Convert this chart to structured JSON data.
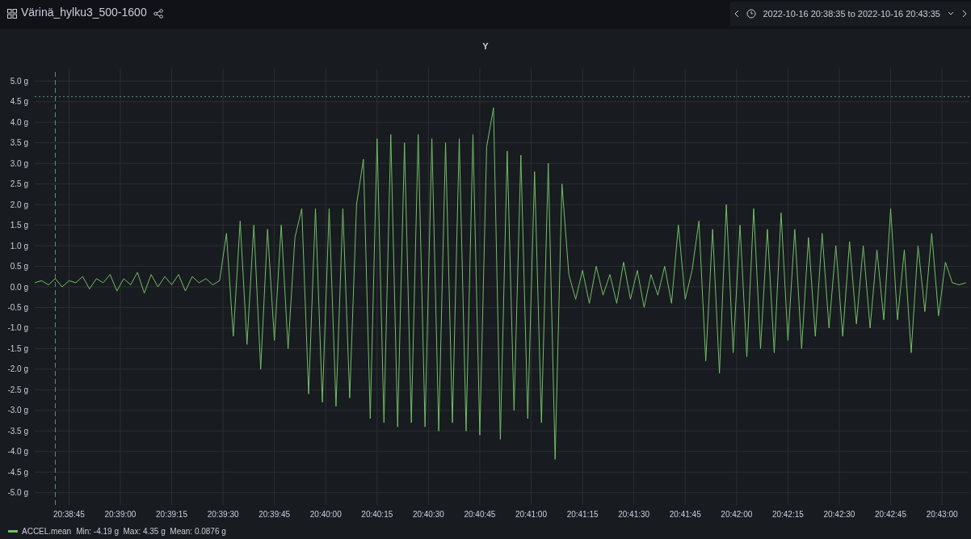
{
  "chart_data": {
    "type": "line",
    "title": "Värinä_hylku3_500-1600",
    "subtitle": "Y",
    "annotations": [
      "2022-10-16 20:38:35 to 2022-10-16 20:43:35",
      "Min: -4.19 g  Max: 4.35 g  Mean: 0.0876 g"
    ],
    "x": [
      "2022-10-16T20:38:35",
      "2022-10-16T20:38:37",
      "2022-10-16T20:38:39",
      "2022-10-16T20:38:41",
      "2022-10-16T20:38:43",
      "2022-10-16T20:38:45",
      "2022-10-16T20:38:47",
      "2022-10-16T20:38:49",
      "2022-10-16T20:38:51",
      "2022-10-16T20:38:53",
      "2022-10-16T20:38:55",
      "2022-10-16T20:38:57",
      "2022-10-16T20:38:59",
      "2022-10-16T20:39:01",
      "2022-10-16T20:39:03",
      "2022-10-16T20:39:05",
      "2022-10-16T20:39:07",
      "2022-10-16T20:39:09",
      "2022-10-16T20:39:11",
      "2022-10-16T20:39:13",
      "2022-10-16T20:39:15",
      "2022-10-16T20:39:17",
      "2022-10-16T20:39:19",
      "2022-10-16T20:39:21",
      "2022-10-16T20:39:23",
      "2022-10-16T20:39:25",
      "2022-10-16T20:39:27",
      "2022-10-16T20:39:29",
      "2022-10-16T20:39:31",
      "2022-10-16T20:39:33",
      "2022-10-16T20:39:35",
      "2022-10-16T20:39:37",
      "2022-10-16T20:39:39",
      "2022-10-16T20:39:41",
      "2022-10-16T20:39:43",
      "2022-10-16T20:39:45",
      "2022-10-16T20:39:47",
      "2022-10-16T20:39:49",
      "2022-10-16T20:39:51",
      "2022-10-16T20:39:53",
      "2022-10-16T20:39:55",
      "2022-10-16T20:39:57",
      "2022-10-16T20:39:59",
      "2022-10-16T20:40:01",
      "2022-10-16T20:40:03",
      "2022-10-16T20:40:05",
      "2022-10-16T20:40:07",
      "2022-10-16T20:40:09",
      "2022-10-16T20:40:11",
      "2022-10-16T20:40:13",
      "2022-10-16T20:40:15",
      "2022-10-16T20:40:17",
      "2022-10-16T20:40:19",
      "2022-10-16T20:40:21",
      "2022-10-16T20:40:23",
      "2022-10-16T20:40:25",
      "2022-10-16T20:40:27",
      "2022-10-16T20:40:29",
      "2022-10-16T20:40:31",
      "2022-10-16T20:40:33",
      "2022-10-16T20:40:35",
      "2022-10-16T20:40:37",
      "2022-10-16T20:40:39",
      "2022-10-16T20:40:41",
      "2022-10-16T20:40:43",
      "2022-10-16T20:40:45",
      "2022-10-16T20:40:47",
      "2022-10-16T20:40:49",
      "2022-10-16T20:40:51",
      "2022-10-16T20:40:53",
      "2022-10-16T20:40:55",
      "2022-10-16T20:40:57",
      "2022-10-16T20:40:59",
      "2022-10-16T20:41:01",
      "2022-10-16T20:41:03",
      "2022-10-16T20:41:05",
      "2022-10-16T20:41:07",
      "2022-10-16T20:41:09",
      "2022-10-16T20:41:11",
      "2022-10-16T20:41:13",
      "2022-10-16T20:41:15",
      "2022-10-16T20:41:17",
      "2022-10-16T20:41:19",
      "2022-10-16T20:41:21",
      "2022-10-16T20:41:23",
      "2022-10-16T20:41:25",
      "2022-10-16T20:41:27",
      "2022-10-16T20:41:29",
      "2022-10-16T20:41:31",
      "2022-10-16T20:41:33",
      "2022-10-16T20:41:35",
      "2022-10-16T20:41:37",
      "2022-10-16T20:41:39",
      "2022-10-16T20:41:41",
      "2022-10-16T20:41:43",
      "2022-10-16T20:41:45",
      "2022-10-16T20:41:47",
      "2022-10-16T20:41:49",
      "2022-10-16T20:41:51",
      "2022-10-16T20:41:53",
      "2022-10-16T20:41:55",
      "2022-10-16T20:41:57",
      "2022-10-16T20:41:59",
      "2022-10-16T20:42:01",
      "2022-10-16T20:42:03",
      "2022-10-16T20:42:05",
      "2022-10-16T20:42:07",
      "2022-10-16T20:42:09",
      "2022-10-16T20:42:11",
      "2022-10-16T20:42:13",
      "2022-10-16T20:42:15",
      "2022-10-16T20:42:17",
      "2022-10-16T20:42:19",
      "2022-10-16T20:42:21",
      "2022-10-16T20:42:23",
      "2022-10-16T20:42:25",
      "2022-10-16T20:42:27",
      "2022-10-16T20:42:29",
      "2022-10-16T20:42:31",
      "2022-10-16T20:42:33",
      "2022-10-16T20:42:35",
      "2022-10-16T20:42:37",
      "2022-10-16T20:42:39",
      "2022-10-16T20:42:41",
      "2022-10-16T20:42:43",
      "2022-10-16T20:42:45",
      "2022-10-16T20:42:47",
      "2022-10-16T20:42:49",
      "2022-10-16T20:42:51",
      "2022-10-16T20:42:53",
      "2022-10-16T20:42:55",
      "2022-10-16T20:42:57",
      "2022-10-16T20:42:59",
      "2022-10-16T20:43:01",
      "2022-10-16T20:43:03",
      "2022-10-16T20:43:05",
      "2022-10-16T20:43:07"
    ],
    "series": [
      {
        "name": "ACCEL.mean",
        "color": "#73bf69",
        "values": [
          0.1,
          0.15,
          0.05,
          0.2,
          0.0,
          0.15,
          0.1,
          0.25,
          -0.05,
          0.2,
          0.1,
          0.3,
          -0.1,
          0.2,
          0.05,
          0.35,
          -0.15,
          0.3,
          0.0,
          0.25,
          0.05,
          0.3,
          -0.1,
          0.25,
          0.1,
          0.2,
          0.05,
          0.15,
          1.3,
          -1.2,
          1.6,
          -1.4,
          1.5,
          -2.0,
          1.4,
          -1.3,
          1.5,
          -1.5,
          1.2,
          1.9,
          -2.6,
          1.9,
          -2.8,
          1.9,
          -2.9,
          1.9,
          -2.7,
          2.0,
          3.1,
          -3.2,
          3.6,
          -3.3,
          3.7,
          -3.4,
          3.5,
          -3.3,
          3.7,
          -3.4,
          3.6,
          -3.5,
          3.5,
          -3.3,
          3.6,
          -3.5,
          3.7,
          -3.6,
          3.4,
          4.35,
          -3.7,
          3.3,
          -3.0,
          3.2,
          -3.2,
          2.8,
          -3.3,
          3.0,
          -4.19,
          2.5,
          0.3,
          -0.3,
          0.4,
          -0.4,
          0.5,
          -0.2,
          0.3,
          -0.4,
          0.6,
          -0.3,
          0.4,
          -0.5,
          0.3,
          -0.2,
          0.5,
          -0.4,
          1.5,
          -0.3,
          0.4,
          1.6,
          -1.8,
          1.4,
          -2.1,
          2.0,
          -1.6,
          1.5,
          -1.7,
          1.9,
          -1.5,
          1.4,
          -1.6,
          1.8,
          -1.3,
          1.4,
          -1.5,
          1.2,
          -1.2,
          1.3,
          -1.0,
          1.0,
          -1.2,
          1.1,
          -0.9,
          1.0,
          -1.0,
          0.9,
          -0.8,
          1.9,
          -0.8,
          0.9,
          -1.6,
          1.0,
          -0.6,
          1.3,
          -0.7,
          0.6,
          0.1,
          0.05,
          0.1
        ]
      }
    ],
    "xlim": [
      "2022-10-16T20:38:35",
      "2022-10-16T20:43:08"
    ],
    "xticks": [
      {
        "value": "2022-10-16T20:38:45",
        "label": "20:38:45"
      },
      {
        "value": "2022-10-16T20:39:00",
        "label": "20:39:00"
      },
      {
        "value": "2022-10-16T20:39:15",
        "label": "20:39:15"
      },
      {
        "value": "2022-10-16T20:39:30",
        "label": "20:39:30"
      },
      {
        "value": "2022-10-16T20:39:45",
        "label": "20:39:45"
      },
      {
        "value": "2022-10-16T20:40:00",
        "label": "20:40:00"
      },
      {
        "value": "2022-10-16T20:40:15",
        "label": "20:40:15"
      },
      {
        "value": "2022-10-16T20:40:30",
        "label": "20:40:30"
      },
      {
        "value": "2022-10-16T20:40:45",
        "label": "20:40:45"
      },
      {
        "value": "2022-10-16T20:41:00",
        "label": "20:41:00"
      },
      {
        "value": "2022-10-16T20:41:15",
        "label": "20:41:15"
      },
      {
        "value": "2022-10-16T20:41:30",
        "label": "20:41:30"
      },
      {
        "value": "2022-10-16T20:41:45",
        "label": "20:41:45"
      },
      {
        "value": "2022-10-16T20:42:00",
        "label": "20:42:00"
      },
      {
        "value": "2022-10-16T20:42:15",
        "label": "20:42:15"
      },
      {
        "value": "2022-10-16T20:42:30",
        "label": "20:42:30"
      },
      {
        "value": "2022-10-16T20:42:45",
        "label": "20:42:45"
      },
      {
        "value": "2022-10-16T20:43:00",
        "label": "20:43:00"
      }
    ],
    "ylim": [
      -5.3,
      5.3
    ],
    "yticks": [
      {
        "value": 5,
        "label": "5.0 g"
      },
      {
        "value": 4.5,
        "label": "4.5 g"
      },
      {
        "value": 4,
        "label": "4.0 g"
      },
      {
        "value": 3.5,
        "label": "3.5 g"
      },
      {
        "value": 3,
        "label": "3.0 g"
      },
      {
        "value": 2.5,
        "label": "2.5 g"
      },
      {
        "value": 2,
        "label": "2.0 g"
      },
      {
        "value": 1.5,
        "label": "1.5 g"
      },
      {
        "value": 1,
        "label": "1.0 g"
      },
      {
        "value": 0.5,
        "label": "0.5 g"
      },
      {
        "value": 0,
        "label": "0.0 g"
      },
      {
        "value": -0.5,
        "label": "-0.5 g"
      },
      {
        "value": -1,
        "label": "-1.0 g"
      },
      {
        "value": -1.5,
        "label": "-1.5 g"
      },
      {
        "value": -2,
        "label": "-2.0 g"
      },
      {
        "value": -2.5,
        "label": "-2.5 g"
      },
      {
        "value": -3,
        "label": "-3.0 g"
      },
      {
        "value": -3.5,
        "label": "-3.5 g"
      },
      {
        "value": -4,
        "label": "-4.0 g"
      },
      {
        "value": -4.5,
        "label": "-4.5 g"
      },
      {
        "value": -5,
        "label": "-5.0 g"
      }
    ],
    "ref_lines": [
      {
        "axis": "y",
        "value": 4.62,
        "color": "#5f8f80",
        "line_style": "dotted"
      },
      {
        "axis": "x",
        "value": "2022-10-16T20:38:41",
        "color": "#5f8f80",
        "line_style": "dashed"
      }
    ],
    "grid": true,
    "legend": "bottom left",
    "marker": "none",
    "line_style": "solid"
  }
}
